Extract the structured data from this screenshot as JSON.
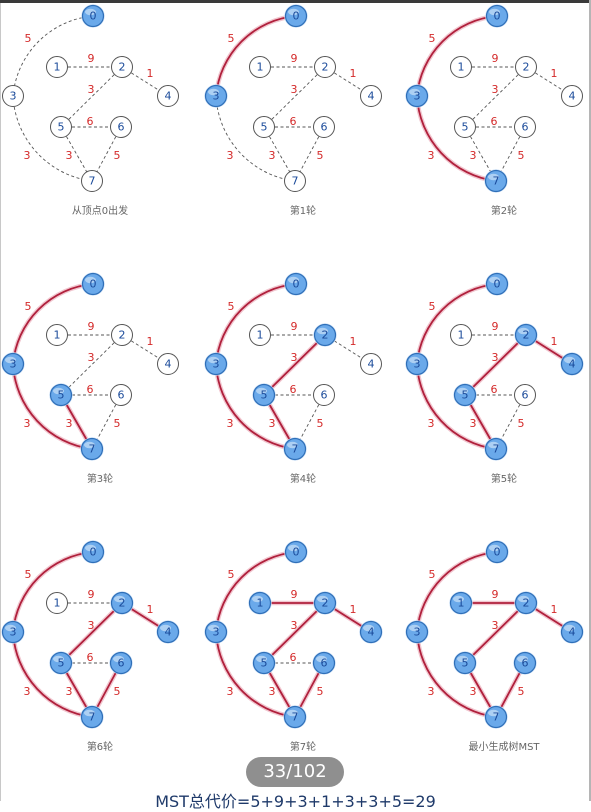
{
  "panels": [
    {
      "caption": "从顶点0出发",
      "highlighted_vertices": [
        "0"
      ],
      "tree_edges": []
    },
    {
      "caption": "第1轮",
      "highlighted_vertices": [
        "0",
        "3"
      ],
      "tree_edges": [
        "0-3"
      ]
    },
    {
      "caption": "第2轮",
      "highlighted_vertices": [
        "0",
        "3",
        "7"
      ],
      "tree_edges": [
        "0-3",
        "3-7"
      ]
    },
    {
      "caption": "第3轮",
      "highlighted_vertices": [
        "0",
        "3",
        "7",
        "5"
      ],
      "tree_edges": [
        "0-3",
        "3-7",
        "5-7"
      ]
    },
    {
      "caption": "第4轮",
      "highlighted_vertices": [
        "0",
        "3",
        "7",
        "5",
        "2"
      ],
      "tree_edges": [
        "0-3",
        "3-7",
        "5-7",
        "2-5"
      ]
    },
    {
      "caption": "第5轮",
      "highlighted_vertices": [
        "0",
        "3",
        "7",
        "5",
        "2",
        "4"
      ],
      "tree_edges": [
        "0-3",
        "3-7",
        "5-7",
        "2-5",
        "2-4"
      ]
    },
    {
      "caption": "第6轮",
      "highlighted_vertices": [
        "0",
        "3",
        "7",
        "5",
        "2",
        "4",
        "6"
      ],
      "tree_edges": [
        "0-3",
        "3-7",
        "5-7",
        "2-5",
        "2-4",
        "6-7"
      ]
    },
    {
      "caption": "第7轮",
      "highlighted_vertices": [
        "0",
        "3",
        "7",
        "5",
        "2",
        "4",
        "6",
        "1"
      ],
      "tree_edges": [
        "0-3",
        "3-7",
        "5-7",
        "2-5",
        "2-4",
        "6-7",
        "1-2"
      ]
    },
    {
      "caption": "最小生成树MST",
      "highlighted_vertices": [
        "0",
        "1",
        "2",
        "3",
        "4",
        "5",
        "6",
        "7"
      ],
      "tree_edges": [
        "0-3",
        "3-7",
        "5-7",
        "2-5",
        "2-4",
        "6-7",
        "1-2"
      ],
      "final": true
    }
  ],
  "graph": {
    "vertices": [
      "0",
      "1",
      "2",
      "3",
      "4",
      "5",
      "6",
      "7"
    ],
    "edges": [
      {
        "id": "0-3",
        "weight": "5"
      },
      {
        "id": "1-2",
        "weight": "9"
      },
      {
        "id": "2-4",
        "weight": "1"
      },
      {
        "id": "2-5",
        "weight": "3"
      },
      {
        "id": "5-6",
        "weight": "6"
      },
      {
        "id": "3-7",
        "weight": "3"
      },
      {
        "id": "5-7",
        "weight": "3"
      },
      {
        "id": "6-7",
        "weight": "5"
      }
    ]
  },
  "page_indicator": "33/102",
  "footer_text": "MST总代价=5+9+3+1+3+3+5=29",
  "colors": {
    "tree_edge": "#b0203c",
    "tree_edge_glow": "#f1c6cf",
    "dashed_edge": "#555555",
    "weight_text": "#d42a2a",
    "vertex_fill_active": "#6aa9ea",
    "vertex_stroke_active": "#2f6fb8",
    "vertex_text": "#1a4a9a",
    "vertex_fill_idle": "#ffffff",
    "vertex_stroke_idle": "#555555",
    "caption_text": "#666666"
  }
}
